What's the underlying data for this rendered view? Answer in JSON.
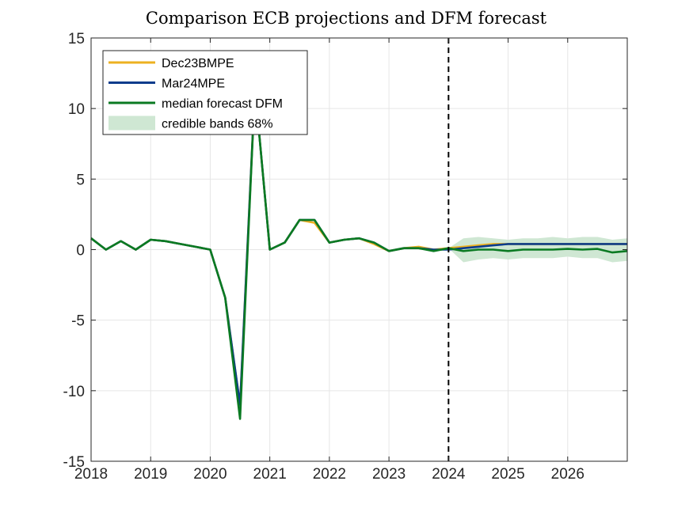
{
  "colors": {
    "dec23": "#EDB120",
    "mar24": "#0B3C8C",
    "median": "#0A7A22",
    "band": "#CFE7D3",
    "grid": "#E6E6E6",
    "axis": "#262626",
    "vline": "#000000"
  },
  "chart_data": {
    "type": "line",
    "title": "Comparison ECB projections and DFM forecast",
    "xlabel": "",
    "ylabel": "",
    "xlim": [
      2018,
      2027
    ],
    "ylim": [
      -15,
      15
    ],
    "xticks": [
      2018,
      2019,
      2020,
      2021,
      2022,
      2023,
      2024,
      2025,
      2026
    ],
    "yticks": [
      -15,
      -10,
      -5,
      0,
      5,
      10,
      15
    ],
    "grid": true,
    "legend_position": "top-left",
    "vertical_line": {
      "x": 2024,
      "style": "dashed"
    },
    "series": [
      {
        "name": "Dec23BMPE",
        "color": "#EDB120",
        "points": [
          [
            2018.0,
            0.8
          ],
          [
            2018.25,
            0.0
          ],
          [
            2018.5,
            0.6
          ],
          [
            2018.75,
            0.0
          ],
          [
            2019.0,
            0.7
          ],
          [
            2019.25,
            0.6
          ],
          [
            2019.5,
            0.4
          ],
          [
            2019.75,
            0.2
          ],
          [
            2020.0,
            0.0
          ],
          [
            2020.25,
            -3.4
          ],
          [
            2020.5,
            -11.0
          ],
          [
            2020.75,
            11.5
          ],
          [
            2021.0,
            0.0
          ],
          [
            2021.25,
            0.5
          ],
          [
            2021.5,
            2.1
          ],
          [
            2021.75,
            1.9
          ],
          [
            2022.0,
            0.5
          ],
          [
            2022.25,
            0.7
          ],
          [
            2022.5,
            0.8
          ],
          [
            2022.75,
            0.4
          ],
          [
            2023.0,
            -0.1
          ],
          [
            2023.25,
            0.1
          ],
          [
            2023.5,
            0.2
          ],
          [
            2023.75,
            0.0
          ],
          [
            2024.0,
            0.1
          ],
          [
            2024.25,
            0.2
          ],
          [
            2024.5,
            0.3
          ],
          [
            2024.75,
            0.4
          ],
          [
            2025.0,
            0.4
          ],
          [
            2025.25,
            0.4
          ],
          [
            2025.5,
            0.4
          ],
          [
            2025.75,
            0.4
          ],
          [
            2026.0,
            0.4
          ],
          [
            2026.25,
            0.4
          ],
          [
            2026.5,
            0.4
          ],
          [
            2026.75,
            0.4
          ],
          [
            2027.0,
            0.4
          ]
        ]
      },
      {
        "name": "Mar24MPE",
        "color": "#0B3C8C",
        "points": [
          [
            2018.0,
            0.8
          ],
          [
            2018.25,
            0.0
          ],
          [
            2018.5,
            0.6
          ],
          [
            2018.75,
            0.0
          ],
          [
            2019.0,
            0.7
          ],
          [
            2019.25,
            0.6
          ],
          [
            2019.5,
            0.4
          ],
          [
            2019.75,
            0.2
          ],
          [
            2020.0,
            0.0
          ],
          [
            2020.25,
            -3.4
          ],
          [
            2020.5,
            -11.0
          ],
          [
            2020.75,
            11.5
          ],
          [
            2021.0,
            0.0
          ],
          [
            2021.25,
            0.5
          ],
          [
            2021.5,
            2.1
          ],
          [
            2021.75,
            2.1
          ],
          [
            2022.0,
            0.5
          ],
          [
            2022.25,
            0.7
          ],
          [
            2022.5,
            0.8
          ],
          [
            2022.75,
            0.5
          ],
          [
            2023.0,
            -0.1
          ],
          [
            2023.25,
            0.1
          ],
          [
            2023.5,
            0.1
          ],
          [
            2023.75,
            0.0
          ],
          [
            2024.0,
            0.0
          ],
          [
            2024.25,
            0.1
          ],
          [
            2024.5,
            0.2
          ],
          [
            2024.75,
            0.3
          ],
          [
            2025.0,
            0.4
          ],
          [
            2025.25,
            0.4
          ],
          [
            2025.5,
            0.4
          ],
          [
            2025.75,
            0.4
          ],
          [
            2026.0,
            0.4
          ],
          [
            2026.25,
            0.4
          ],
          [
            2026.5,
            0.4
          ],
          [
            2026.75,
            0.4
          ],
          [
            2027.0,
            0.4
          ]
        ]
      },
      {
        "name": "median forecast DFM",
        "color": "#0A7A22",
        "points": [
          [
            2018.0,
            0.8
          ],
          [
            2018.25,
            0.0
          ],
          [
            2018.5,
            0.6
          ],
          [
            2018.75,
            0.0
          ],
          [
            2019.0,
            0.7
          ],
          [
            2019.25,
            0.6
          ],
          [
            2019.5,
            0.4
          ],
          [
            2019.75,
            0.2
          ],
          [
            2020.0,
            0.0
          ],
          [
            2020.25,
            -3.4
          ],
          [
            2020.5,
            -12.0
          ],
          [
            2020.75,
            11.5
          ],
          [
            2021.0,
            0.0
          ],
          [
            2021.25,
            0.5
          ],
          [
            2021.5,
            2.1
          ],
          [
            2021.75,
            2.1
          ],
          [
            2022.0,
            0.5
          ],
          [
            2022.25,
            0.7
          ],
          [
            2022.5,
            0.8
          ],
          [
            2022.75,
            0.5
          ],
          [
            2023.0,
            -0.1
          ],
          [
            2023.25,
            0.1
          ],
          [
            2023.5,
            0.1
          ],
          [
            2023.75,
            -0.1
          ],
          [
            2024.0,
            0.1
          ],
          [
            2024.25,
            -0.1
          ],
          [
            2024.5,
            0.0
          ],
          [
            2024.75,
            0.0
          ],
          [
            2025.0,
            -0.1
          ],
          [
            2025.25,
            0.0
          ],
          [
            2025.5,
            0.0
          ],
          [
            2025.75,
            0.0
          ],
          [
            2026.0,
            0.05
          ],
          [
            2026.25,
            0.0
          ],
          [
            2026.5,
            0.05
          ],
          [
            2026.75,
            -0.2
          ],
          [
            2027.0,
            -0.1
          ]
        ]
      }
    ],
    "band": {
      "name": "credible bands 68%",
      "color": "#CFE7D3",
      "x": [
        2024.0,
        2024.25,
        2024.5,
        2024.75,
        2025.0,
        2025.25,
        2025.5,
        2025.75,
        2026.0,
        2026.25,
        2026.5,
        2026.75,
        2027.0
      ],
      "upper": [
        0.1,
        0.8,
        0.9,
        0.8,
        0.7,
        0.8,
        0.8,
        0.9,
        0.8,
        0.9,
        0.9,
        0.7,
        0.8
      ],
      "lower": [
        0.1,
        -0.9,
        -0.7,
        -0.6,
        -0.7,
        -0.6,
        -0.6,
        -0.6,
        -0.5,
        -0.6,
        -0.6,
        -0.9,
        -0.8
      ]
    }
  }
}
